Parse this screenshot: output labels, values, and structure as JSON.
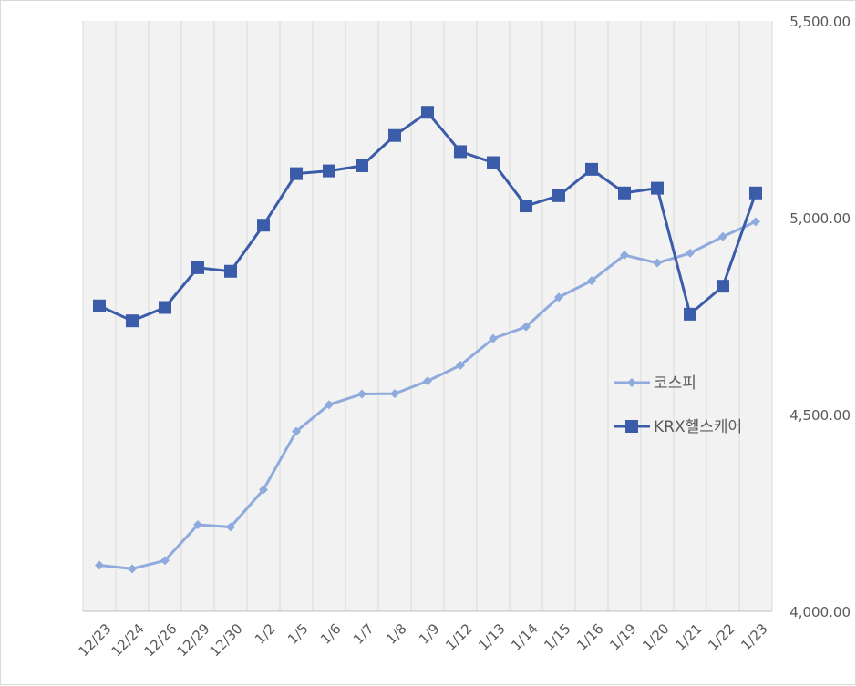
{
  "chart_data": {
    "type": "line",
    "categories": [
      "12/23",
      "12/24",
      "12/26",
      "12/29",
      "12/30",
      "1/2",
      "1/5",
      "1/6",
      "1/7",
      "1/8",
      "1/9",
      "1/12",
      "1/13",
      "1/14",
      "1/15",
      "1/16",
      "1/19",
      "1/20",
      "1/21",
      "1/22",
      "1/23"
    ],
    "series": [
      {
        "name": "코스피",
        "color": "#8faadc",
        "marker": "diamond",
        "values": [
          4117,
          4108,
          4129,
          4220,
          4214,
          4309,
          4457,
          4525,
          4552,
          4553,
          4585,
          4625,
          4693,
          4723,
          4798,
          4840,
          4905,
          4885,
          4910,
          4952,
          4990
        ]
      },
      {
        "name": "KRX헬스케어",
        "color": "#3b5ca8",
        "marker": "square",
        "values": [
          4776,
          4738,
          4772,
          4873,
          4864,
          4981,
          5112,
          5119,
          5132,
          5209,
          5268,
          5168,
          5140,
          5030,
          5056,
          5123,
          5063,
          5075,
          4755,
          4826,
          5063
        ]
      }
    ],
    "ylim": [
      4000,
      5500
    ],
    "y_ticks": [
      "4,000.00",
      "4,500.00",
      "5,000.00",
      "5,500.00"
    ],
    "y_axis_position": "right",
    "grid": "vertical",
    "legend_position": "right"
  }
}
